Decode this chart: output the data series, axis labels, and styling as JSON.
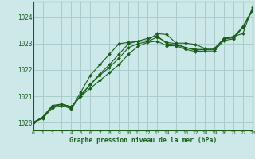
{
  "title": "Graphe pression niveau de la mer (hPa)",
  "bg_color": "#cce8e8",
  "grid_color": "#aacccc",
  "line_color": "#1a5c1a",
  "xlim": [
    0,
    23
  ],
  "ylim": [
    1019.7,
    1024.6
  ],
  "yticks": [
    1020,
    1021,
    1022,
    1023,
    1024
  ],
  "xticks": [
    0,
    1,
    2,
    3,
    4,
    5,
    6,
    7,
    8,
    9,
    10,
    11,
    12,
    13,
    14,
    15,
    16,
    17,
    18,
    19,
    20,
    21,
    22,
    23
  ],
  "series": [
    [
      1020.0,
      1020.2,
      1020.6,
      1020.7,
      1020.6,
      1021.0,
      1021.45,
      1021.85,
      1022.2,
      1022.6,
      1023.0,
      1023.1,
      1023.2,
      1023.3,
      1023.0,
      1022.95,
      1022.85,
      1022.78,
      1022.78,
      1022.78,
      1023.2,
      1023.25,
      1023.65,
      1024.3
    ],
    [
      1020.0,
      1020.2,
      1020.6,
      1020.7,
      1020.6,
      1021.0,
      1021.3,
      1021.6,
      1021.9,
      1022.2,
      1022.6,
      1022.9,
      1023.05,
      1023.1,
      1022.92,
      1022.92,
      1022.78,
      1022.7,
      1022.72,
      1022.72,
      1023.12,
      1023.18,
      1023.62,
      1024.25
    ],
    [
      1020.0,
      1020.2,
      1020.65,
      1020.7,
      1020.55,
      1021.15,
      1021.8,
      1022.2,
      1022.6,
      1023.0,
      1023.05,
      1023.08,
      1023.12,
      1023.38,
      1023.35,
      1023.02,
      1023.02,
      1022.97,
      1022.82,
      1022.82,
      1023.18,
      1023.28,
      1023.38,
      1024.38
    ],
    [
      1020.0,
      1020.15,
      1020.55,
      1020.65,
      1020.52,
      1021.05,
      1021.45,
      1021.8,
      1022.1,
      1022.45,
      1022.85,
      1023.0,
      1023.08,
      1023.25,
      1023.05,
      1023.0,
      1022.85,
      1022.75,
      1022.78,
      1022.78,
      1023.18,
      1023.22,
      1023.62,
      1024.28
    ]
  ]
}
